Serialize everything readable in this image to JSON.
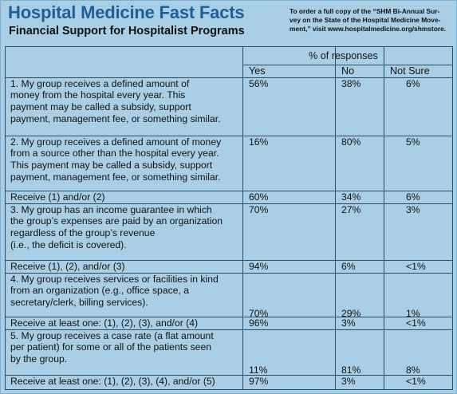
{
  "header": {
    "title": "Hospital Medicine Fast Facts",
    "subtitle": "Financial Support for Hospitalist Programs",
    "note_lines": [
      "To order a full copy of the “SHM Bi-Annual Sur-",
      "vey on the State of the Hospital Medicine Move-",
      "ment,” visit www.hospitalmedicine.org/shmstore."
    ]
  },
  "table": {
    "group_header": "% of responses",
    "columns": [
      "Yes",
      "No",
      "Not Sure"
    ],
    "rows": [
      {
        "lines": [
          "1. My group receives a defined amount of",
          "money from the hospital every year. This",
          "payment may be called a subsidy, support",
          "payment, management fee, or something similar."
        ],
        "yes": "56%",
        "no": "38%",
        "not_sure": "6%"
      },
      {
        "lines": [
          "2. My group receives a defined amount of money",
          "from a source other than the hospital every year.",
          "This payment may be called a subsidy, support",
          "payment, management fee, or something similar."
        ],
        "yes": "16%",
        "no": "80%",
        "not_sure": "5%"
      },
      {
        "lines": [
          "Receive (1) and/or (2)"
        ],
        "yes": "60%",
        "no": "34%",
        "not_sure": "6%"
      },
      {
        "lines": [
          "3. My group has an income guarantee in which",
          "the group’s expenses are paid by an organization",
          "regardless of the group’s revenue",
          "(i.e., the deficit is covered)."
        ],
        "yes": "70%",
        "no": "27%",
        "not_sure": "3%"
      },
      {
        "lines": [
          "Receive (1), (2), and/or (3)"
        ],
        "yes": "94%",
        "no": "6%",
        "not_sure": "<1%"
      },
      {
        "lines": [
          "4. My group receives services or facilities in kind",
          "from an organization (e.g., office space, a",
          "secretary/clerk, billing services)."
        ],
        "yes": "70%",
        "no": "29%",
        "not_sure": "1%"
      },
      {
        "lines": [
          "Receive at least one: (1), (2), (3), and/or (4)"
        ],
        "yes": "96%",
        "no": "3%",
        "not_sure": "<1%"
      },
      {
        "lines": [
          "5. My group receives a case rate (a flat amount",
          "per patient) for some or all of the patients seen",
          "by the group."
        ],
        "yes": "11%",
        "no": "81%",
        "not_sure": "8%"
      },
      {
        "lines": [
          "Receive at least one: (1), (2), (3), (4), and/or (5)"
        ],
        "yes": "97%",
        "no": "3%",
        "not_sure": "<1%"
      }
    ]
  }
}
